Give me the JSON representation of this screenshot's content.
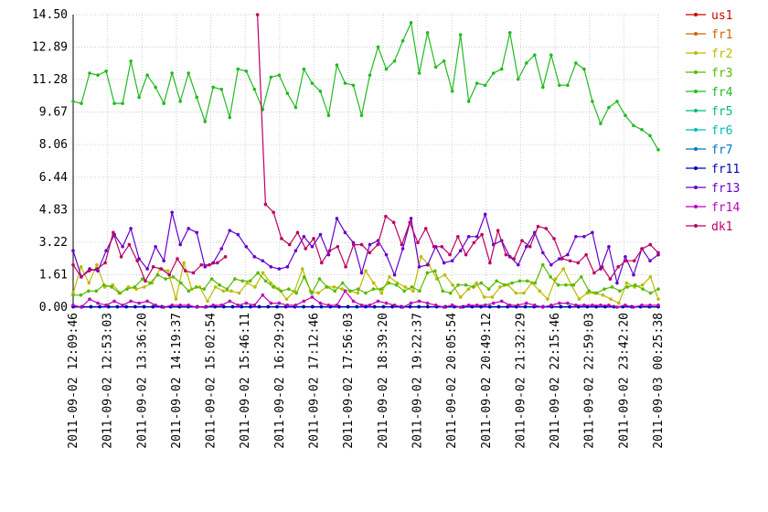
{
  "chart_data": {
    "type": "line",
    "title": "",
    "xlabel": "",
    "ylabel": "",
    "ylim": [
      0,
      14.5
    ],
    "grid": true,
    "legend_position": "right",
    "yticks": [
      "0.00",
      "1.61",
      "3.22",
      "4.83",
      "6.44",
      "8.06",
      "9.67",
      "11.28",
      "12.89",
      "14.50"
    ],
    "xticks": [
      "2011-09-02 12:09:46",
      "2011-09-02 12:53:03",
      "2011-09-02 13:36:20",
      "2011-09-02 14:19:37",
      "2011-09-02 15:02:54",
      "2011-09-02 15:46:11",
      "2011-09-02 16:29:29",
      "2011-09-02 17:12:46",
      "2011-09-02 17:56:03",
      "2011-09-02 18:39:20",
      "2011-09-02 19:22:37",
      "2011-09-02 20:05:54",
      "2011-09-02 20:49:12",
      "2011-09-02 21:32:29",
      "2011-09-02 22:15:46",
      "2011-09-02 22:59:03",
      "2011-09-02 23:42:20",
      "2011-09-03 00:25:38"
    ],
    "series": [
      {
        "name": "us1",
        "color": "#cc0000",
        "values": [
          0.02,
          0.02,
          0.02,
          0.02,
          0.02,
          0.02,
          0.02,
          0.02,
          0.02,
          0.02,
          0.02,
          0.02,
          0.02,
          0.02,
          0.02,
          0.02,
          0.02,
          0.02,
          0.02,
          0.02,
          0.02,
          0.02,
          0.02,
          0.02,
          0.02,
          0.02,
          0.02,
          0.02,
          0.02,
          0.02,
          0.02,
          0.02,
          0.02,
          0.02,
          0.02,
          0.02,
          0.02,
          0.02,
          0.02,
          0.02,
          0.02,
          0.02,
          0.02,
          0.02,
          0.02,
          0.02,
          0.02,
          0.02,
          0.02,
          0.02,
          0.02,
          0.02,
          0.02,
          0.02,
          0.02,
          0.02,
          0.02,
          0.02,
          0.02,
          0.02,
          0.02,
          0.02,
          0.02,
          0.02,
          0.02,
          0.02,
          0.02
        ]
      },
      {
        "name": "fr1",
        "color": "#cc6600",
        "values": [
          0.03,
          0.03,
          0.03,
          0.03,
          0.03,
          0.03,
          0.03,
          0.03,
          0.03,
          0.03,
          0.03,
          0.03,
          0.03,
          0.03,
          0.03,
          0.03,
          0.03,
          0.03,
          0.03,
          0.03,
          0.03,
          0.03,
          0.03,
          0.03,
          0.03,
          0.03,
          0.03,
          0.03,
          0.03,
          0.03,
          0.03,
          0.03,
          0.03,
          0.03,
          0.03,
          0.03,
          0.03,
          0.03,
          0.03,
          0.03,
          0.03,
          0.03,
          0.03,
          0.03,
          0.03,
          0.03,
          0.03,
          0.03,
          0.03,
          0.03,
          0.03,
          0.03,
          0.03,
          0.03,
          0.03,
          0.03,
          0.03,
          0.03,
          0.03,
          0.03,
          0.03,
          0.03,
          0.03,
          0.03,
          0.03,
          0.03,
          0.03
        ]
      },
      {
        "name": "fr2",
        "color": "#bbbb00",
        "values": [
          0.7,
          2.0,
          1.2,
          2.1,
          1.0,
          1.1,
          0.7,
          1.0,
          0.9,
          1.0,
          1.2,
          1.9,
          1.8,
          0.4,
          2.2,
          0.9,
          1.0,
          0.3,
          1.0,
          0.8,
          0.8,
          0.7,
          1.2,
          1.0,
          1.7,
          1.2,
          0.9,
          0.4,
          0.8,
          1.9,
          0.8,
          0.7,
          1.0,
          1.0,
          0.9,
          0.8,
          0.7,
          1.8,
          1.2,
          0.7,
          1.5,
          1.2,
          1.0,
          0.8,
          2.5,
          2.1,
          1.4,
          1.6,
          1.1,
          0.5,
          0.9,
          1.2,
          0.5,
          0.5,
          1.0,
          1.1,
          0.7,
          0.7,
          1.2,
          0.8,
          0.4,
          1.4,
          1.9,
          1.1,
          0.4,
          0.7,
          0.7,
          0.6,
          0.4,
          0.2,
          1.2,
          1.0,
          1.1,
          1.5,
          0.4
        ]
      },
      {
        "name": "fr3",
        "color": "#55bb00",
        "values": [
          0.6,
          0.6,
          0.8,
          0.8,
          1.1,
          1.0,
          0.7,
          0.9,
          1.0,
          1.4,
          1.2,
          1.6,
          1.4,
          1.5,
          1.2,
          0.8,
          1.0,
          0.9,
          1.4,
          1.1,
          0.9,
          1.4,
          1.3,
          1.3,
          1.7,
          1.3,
          1.0,
          0.8,
          0.9,
          0.7,
          1.5,
          0.7,
          1.4,
          1.0,
          0.8,
          1.2,
          0.8,
          0.9,
          0.7,
          0.9,
          0.9,
          1.2,
          1.1,
          0.8,
          1.0,
          0.8,
          1.7,
          1.8,
          0.8,
          0.7,
          1.1,
          1.1,
          1.0,
          1.2,
          0.9,
          1.3,
          1.1,
          1.2,
          1.3,
          1.3,
          1.2,
          2.1,
          1.5,
          1.1,
          1.1,
          1.1,
          1.5,
          0.8,
          0.7,
          0.9,
          1.0,
          0.8,
          1.0,
          1.1,
          0.9,
          0.7,
          0.9
        ]
      },
      {
        "name": "fr4",
        "color": "#22bb22",
        "values": [
          10.2,
          10.1,
          11.6,
          11.5,
          11.7,
          10.1,
          10.1,
          12.2,
          10.4,
          11.5,
          10.9,
          10.1,
          11.6,
          10.2,
          11.6,
          10.4,
          9.2,
          10.9,
          10.8,
          9.4,
          11.8,
          11.7,
          10.8,
          9.8,
          11.4,
          11.5,
          10.6,
          9.9,
          11.8,
          11.1,
          10.7,
          9.5,
          12.0,
          11.1,
          11.0,
          9.5,
          11.5,
          12.9,
          11.8,
          12.2,
          13.2,
          14.1,
          11.6,
          13.6,
          11.9,
          12.2,
          10.7,
          13.5,
          10.2,
          11.1,
          11.0,
          11.6,
          11.8,
          13.6,
          11.3,
          12.1,
          12.5,
          10.9,
          12.5,
          11.0,
          11.0,
          12.1,
          11.8,
          10.2,
          9.1,
          9.9,
          10.2,
          9.5,
          9.0,
          8.8,
          8.5,
          7.8
        ]
      },
      {
        "name": "fr5",
        "color": "#00bb77",
        "values": [
          0.02,
          0.02,
          0.02,
          0.02,
          0.02,
          0.02,
          0.02,
          0.02,
          0.02,
          0.02,
          0.02,
          0.02,
          0.02,
          0.02,
          0.02,
          0.02,
          0.02,
          0.02,
          0.02,
          0.02,
          0.02,
          0.02,
          0.02,
          0.02,
          0.02,
          0.02,
          0.02,
          0.02,
          0.02,
          0.02,
          0.02,
          0.02,
          0.02,
          0.02,
          0.02,
          0.02,
          0.02,
          0.02,
          0.02,
          0.02,
          0.02,
          0.02,
          0.02,
          0.02,
          0.02,
          0.02,
          0.02,
          0.02,
          0.02,
          0.02,
          0.02,
          0.02,
          0.02,
          0.02,
          0.02,
          0.02,
          0.02,
          0.02,
          0.02,
          0.02,
          0.02,
          0.02,
          0.02,
          0.02,
          0.02,
          0.02,
          0.02
        ]
      },
      {
        "name": "fr6",
        "color": "#00bbbb",
        "values": [
          0.02,
          0.02,
          0.02,
          0.02,
          0.02,
          0.02,
          0.02,
          0.02,
          0.02,
          0.02,
          0.02,
          0.02,
          0.02,
          0.02,
          0.02,
          0.02,
          0.02,
          0.02,
          0.02,
          0.02,
          0.02,
          0.02,
          0.02,
          0.02,
          0.02,
          0.02,
          0.02,
          0.02,
          0.02,
          0.02,
          0.02,
          0.02,
          0.02,
          0.02,
          0.02,
          0.02,
          0.02,
          0.02,
          0.02,
          0.02,
          0.02,
          0.02,
          0.02,
          0.02,
          0.02,
          0.02,
          0.02,
          0.02,
          0.02,
          0.02,
          0.02,
          0.02,
          0.02,
          0.02,
          0.02,
          0.02,
          0.02,
          0.02,
          0.02,
          0.02,
          0.02,
          0.02,
          0.02,
          0.02,
          0.02,
          0.02,
          0.02
        ]
      },
      {
        "name": "fr7",
        "color": "#0077bb",
        "values": [
          0.02,
          0.02,
          0.02,
          0.02,
          0.02,
          0.02,
          0.02,
          0.02,
          0.02,
          0.02,
          0.02,
          0.02,
          0.02,
          0.02,
          0.02,
          0.02,
          0.02,
          0.02,
          0.02,
          0.02,
          0.02,
          0.02,
          0.02,
          0.02,
          0.02,
          0.02,
          0.02,
          0.02,
          0.02,
          0.02,
          0.02,
          0.02,
          0.02,
          0.02,
          0.02,
          0.02,
          0.02,
          0.02,
          0.02,
          0.02,
          0.02,
          0.02,
          0.02,
          0.02,
          0.02,
          0.02,
          0.02,
          0.02,
          0.02,
          0.02,
          0.02,
          0.02,
          0.02,
          0.02,
          0.02,
          0.02,
          0.02,
          0.02,
          0.02,
          0.02,
          0.02,
          0.02,
          0.02,
          0.02,
          0.02,
          0.02,
          0.02
        ]
      },
      {
        "name": "fr11",
        "color": "#0000bb",
        "values": [
          0.02,
          0.02,
          0.02,
          0.02,
          0.02,
          0.02,
          0.02,
          0.02,
          0.02,
          0.02,
          0.02,
          0.02,
          0.02,
          0.02,
          0.02,
          0.02,
          0.02,
          0.02,
          0.02,
          0.02,
          0.02,
          0.02,
          0.02,
          0.02,
          0.02,
          0.02,
          0.02,
          0.02,
          0.02,
          0.02,
          0.02,
          0.02,
          0.02,
          0.02,
          0.02,
          0.02,
          0.02,
          0.02,
          0.02,
          0.02,
          0.02,
          0.02,
          0.02,
          0.02,
          0.02,
          0.02,
          0.02,
          0.02,
          0.02,
          0.02,
          0.02,
          0.02,
          0.02,
          0.02,
          0.02,
          0.02,
          0.02,
          0.02,
          0.02,
          0.02,
          0.02,
          0.02,
          0.02,
          0.02,
          0.02,
          0.02,
          0.02
        ]
      },
      {
        "name": "fr13",
        "color": "#6600cc",
        "values": [
          2.8,
          1.5,
          1.9,
          1.8,
          2.8,
          3.6,
          3.0,
          3.9,
          2.4,
          1.9,
          3.0,
          2.3,
          4.7,
          3.1,
          3.9,
          3.7,
          2.0,
          2.2,
          2.9,
          3.8,
          3.6,
          3.0,
          2.5,
          2.3,
          2.0,
          1.9,
          2.0,
          2.8,
          3.5,
          3.0,
          3.6,
          2.6,
          4.4,
          3.7,
          3.2,
          1.7,
          3.1,
          3.3,
          2.6,
          1.6,
          2.9,
          4.4,
          2.0,
          2.1,
          3.0,
          2.2,
          2.3,
          2.8,
          3.5,
          3.5,
          4.6,
          3.1,
          3.3,
          2.5,
          2.1,
          3.0,
          3.7,
          2.7,
          2.1,
          2.4,
          2.6,
          3.5,
          3.5,
          3.7,
          1.9,
          3.0,
          1.2,
          2.5,
          1.6,
          2.9,
          2.3,
          2.6
        ]
      },
      {
        "name": "fr14",
        "color": "#bb00bb",
        "values": [
          0.1,
          0.0,
          0.4,
          0.2,
          0.1,
          0.3,
          0.1,
          0.3,
          0.2,
          0.3,
          0.1,
          0.0,
          0.1,
          0.1,
          0.1,
          0.0,
          0.0,
          0.1,
          0.1,
          0.3,
          0.1,
          0.2,
          0.1,
          0.6,
          0.2,
          0.2,
          0.1,
          0.1,
          0.3,
          0.5,
          0.2,
          0.1,
          0.1,
          0.8,
          0.3,
          0.1,
          0.1,
          0.3,
          0.2,
          0.1,
          0.0,
          0.2,
          0.3,
          0.2,
          0.1,
          0.0,
          0.1,
          0.0,
          0.1,
          0.1,
          0.1,
          0.2,
          0.3,
          0.1,
          0.1,
          0.2,
          0.1,
          0.0,
          0.1,
          0.2,
          0.2,
          0.1,
          0.1,
          0.1,
          0.1,
          0.1,
          0.0,
          0.1,
          0.0,
          0.1,
          0.1,
          0.1
        ]
      },
      {
        "name": "dk1",
        "color": "#bb0066",
        "values": [
          2.1,
          1.5,
          1.8,
          1.9,
          2.2,
          3.7,
          2.5,
          3.1,
          2.3,
          1.3,
          2.0,
          1.9,
          1.6,
          2.4,
          1.8,
          1.7,
          2.1,
          2.1,
          2.2,
          2.5,
          null,
          null,
          null,
          14.5,
          5.1,
          4.7,
          3.4,
          3.1,
          3.7,
          2.9,
          3.4,
          2.2,
          2.8,
          3.0,
          2.0,
          3.1,
          3.1,
          2.7,
          3.1,
          4.5,
          4.2,
          3.1,
          4.2,
          3.2,
          3.9,
          3.0,
          3.0,
          2.6,
          3.5,
          2.6,
          3.2,
          3.6,
          2.2,
          3.8,
          2.6,
          2.4,
          3.3,
          3.0,
          4.0,
          3.9,
          3.4,
          2.4,
          2.3,
          2.2,
          2.6,
          1.7,
          2.0,
          1.4,
          2.0,
          2.3,
          2.3,
          2.9,
          3.1,
          2.7
        ]
      }
    ]
  }
}
